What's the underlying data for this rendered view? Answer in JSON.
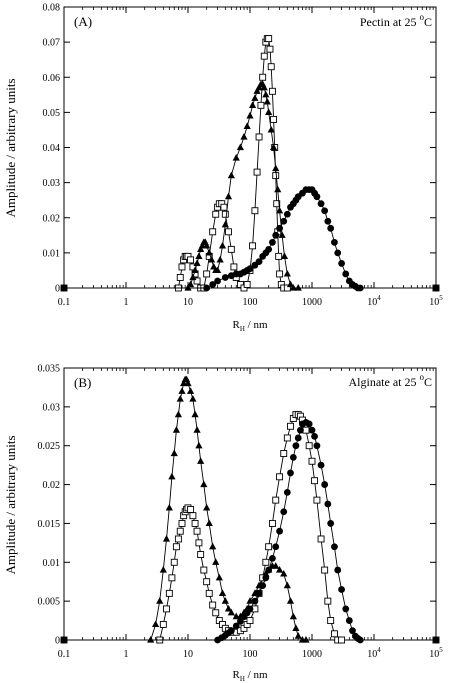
{
  "chart_data": [
    {
      "type": "scatter",
      "panel_label": "(A)",
      "annotation": {
        "text": "Pectin at 25",
        "sup": "o",
        "unit": "C"
      },
      "ylabel": "Amplitude / arbitrary units",
      "xlabel": {
        "main": "R",
        "sub": "H",
        "rest": " / nm"
      },
      "xscale": "log",
      "xlim": [
        0.1,
        100000
      ],
      "ylim": [
        0,
        0.08
      ],
      "x_ticks": [
        {
          "v": 0.1,
          "label": "0.1"
        },
        {
          "v": 1,
          "label": "1"
        },
        {
          "v": 10,
          "label": "10"
        },
        {
          "v": 100,
          "label": "100"
        },
        {
          "v": 1000,
          "label": "1000"
        },
        {
          "v": 10000,
          "base": "10",
          "exp": "4"
        },
        {
          "v": 100000,
          "base": "10",
          "exp": "5"
        }
      ],
      "y_ticks": [
        {
          "v": 0,
          "label": "0"
        },
        {
          "v": 0.01,
          "label": "0.01"
        },
        {
          "v": 0.02,
          "label": "0.02"
        },
        {
          "v": 0.03,
          "label": "0.03"
        },
        {
          "v": 0.04,
          "label": "0.04"
        },
        {
          "v": 0.05,
          "label": "0.05"
        },
        {
          "v": 0.06,
          "label": "0.06"
        },
        {
          "v": 0.07,
          "label": "0.07"
        },
        {
          "v": 0.08,
          "label": "0.08"
        }
      ],
      "grid": false,
      "series": [
        {
          "marker": "square-open",
          "x": [
            0.1,
            7.0,
            7.5,
            8.0,
            8.5,
            9.0,
            9.5,
            10.0,
            11.0,
            12.0,
            13.0,
            14.0,
            16.0,
            18.0,
            20.0,
            22.0,
            25.0,
            28.0,
            30.0,
            32.0,
            35.0,
            38.0,
            40.0,
            45.0,
            50.0,
            55.0,
            60.0,
            70.0,
            80.0,
            90.0,
            100.0,
            110.0,
            120.0,
            130.0,
            140.0,
            150.0,
            160.0,
            170.0,
            180.0,
            190.0,
            200.0,
            210.0,
            220.0,
            230.0,
            240.0,
            250.0,
            260.0,
            270.0,
            280.0,
            290.0,
            300.0,
            320.0,
            350.0,
            400.0,
            100000
          ],
          "y": [
            0,
            0,
            0.003,
            0.006,
            0.008,
            0.009,
            0.009,
            0.009,
            0.008,
            0.006,
            0.004,
            0.002,
            0,
            0,
            0.004,
            0.009,
            0.016,
            0.021,
            0.023,
            0.024,
            0.024,
            0.023,
            0.021,
            0.016,
            0.011,
            0.006,
            0.003,
            0.001,
            0,
            0.001,
            0.005,
            0.012,
            0.022,
            0.033,
            0.043,
            0.052,
            0.06,
            0.066,
            0.07,
            0.071,
            0.071,
            0.068,
            0.063,
            0.056,
            0.048,
            0.04,
            0.032,
            0.024,
            0.016,
            0.009,
            0.004,
            0.001,
            0,
            0,
            0
          ]
        },
        {
          "marker": "triangle-filled",
          "x": [
            0.1,
            10.0,
            11.0,
            12.0,
            13.0,
            14.0,
            15.0,
            16.0,
            17.0,
            18.0,
            19.0,
            20.0,
            22.0,
            24.0,
            26.0,
            28.0,
            30.0,
            33.0,
            36.0,
            40.0,
            45.0,
            50.0,
            60.0,
            70.0,
            80.0,
            90.0,
            100.0,
            110.0,
            120.0,
            130.0,
            140.0,
            150.0,
            160.0,
            170.0,
            180.0,
            190.0,
            200.0,
            220.0,
            240.0,
            260.0,
            280.0,
            300.0,
            330.0,
            360.0,
            400.0,
            450.0,
            500.0,
            600.0,
            100000
          ],
          "y": [
            0,
            0,
            0.001,
            0.003,
            0.005,
            0.007,
            0.009,
            0.011,
            0.012,
            0.013,
            0.013,
            0.012,
            0.01,
            0.008,
            0.006,
            0.005,
            0.005,
            0.008,
            0.012,
            0.018,
            0.026,
            0.032,
            0.037,
            0.04,
            0.043,
            0.046,
            0.049,
            0.052,
            0.054,
            0.056,
            0.057,
            0.058,
            0.058,
            0.057,
            0.055,
            0.053,
            0.05,
            0.045,
            0.04,
            0.034,
            0.028,
            0.022,
            0.015,
            0.009,
            0.004,
            0.001,
            0,
            0,
            0
          ]
        },
        {
          "marker": "circle-filled",
          "x": [
            0.1,
            20.0,
            25.0,
            30.0,
            40.0,
            50.0,
            60.0,
            70.0,
            80.0,
            90.0,
            100.0,
            120.0,
            140.0,
            160.0,
            180.0,
            200.0,
            230.0,
            260.0,
            300.0,
            350.0,
            400.0,
            450.0,
            500.0,
            550.0,
            600.0,
            700.0,
            800.0,
            900.0,
            1000.0,
            1100.0,
            1200.0,
            1400.0,
            1600.0,
            1800.0,
            2000.0,
            2300.0,
            2600.0,
            3000.0,
            3500.0,
            4000.0,
            4500.0,
            5000.0,
            5500.0,
            6000.0,
            100000
          ],
          "y": [
            0,
            0,
            0.001,
            0.002,
            0.003,
            0.0035,
            0.004,
            0.004,
            0.0045,
            0.005,
            0.0055,
            0.0065,
            0.0075,
            0.009,
            0.01,
            0.011,
            0.013,
            0.015,
            0.017,
            0.019,
            0.021,
            0.023,
            0.024,
            0.025,
            0.026,
            0.027,
            0.028,
            0.028,
            0.028,
            0.027,
            0.026,
            0.024,
            0.022,
            0.019,
            0.017,
            0.013,
            0.01,
            0.007,
            0.004,
            0.002,
            0.001,
            0.0005,
            0,
            0,
            0
          ]
        }
      ]
    },
    {
      "type": "scatter",
      "panel_label": "(B)",
      "annotation": {
        "text": "Alginate at 25",
        "sup": "o",
        "unit": "C"
      },
      "ylabel": "Amplitude / arbitrary units",
      "xlabel": {
        "main": "R",
        "sub": "H",
        "rest": " / nm"
      },
      "xscale": "log",
      "xlim": [
        0.1,
        100000
      ],
      "ylim": [
        0,
        0.035
      ],
      "x_ticks": [
        {
          "v": 0.1,
          "label": "0.1"
        },
        {
          "v": 1,
          "label": "1"
        },
        {
          "v": 10,
          "label": "10"
        },
        {
          "v": 100,
          "label": "100"
        },
        {
          "v": 1000,
          "label": "1000"
        },
        {
          "v": 10000,
          "base": "10",
          "exp": "4"
        },
        {
          "v": 100000,
          "base": "10",
          "exp": "5"
        }
      ],
      "y_ticks": [
        {
          "v": 0,
          "label": "0"
        },
        {
          "v": 0.005,
          "label": "0.005"
        },
        {
          "v": 0.01,
          "label": "0.01"
        },
        {
          "v": 0.015,
          "label": "0.015"
        },
        {
          "v": 0.02,
          "label": "0.02"
        },
        {
          "v": 0.025,
          "label": "0.025"
        },
        {
          "v": 0.03,
          "label": "0.03"
        },
        {
          "v": 0.035,
          "label": "0.035"
        }
      ],
      "grid": false,
      "series": [
        {
          "marker": "triangle-filled",
          "x": [
            0.1,
            2.5,
            3.0,
            3.5,
            4.0,
            4.5,
            5.0,
            5.5,
            6.0,
            6.5,
            7.0,
            7.5,
            8.0,
            8.5,
            9.0,
            9.5,
            10.0,
            11.0,
            12.0,
            13.0,
            14.0,
            15.0,
            16.0,
            18.0,
            20.0,
            22.0,
            25.0,
            28.0,
            32.0,
            36.0,
            40.0,
            45.0,
            50.0,
            60.0,
            70.0,
            80.0,
            90.0,
            100.0,
            120.0,
            140.0,
            160.0,
            180.0,
            200.0,
            230.0,
            260.0,
            300.0,
            350.0,
            400.0,
            450.0,
            500.0,
            550.0,
            600.0,
            700.0,
            800.0,
            100000
          ],
          "y": [
            0,
            0,
            0.002,
            0.005,
            0.009,
            0.013,
            0.017,
            0.021,
            0.024,
            0.027,
            0.029,
            0.031,
            0.032,
            0.033,
            0.0335,
            0.0335,
            0.033,
            0.032,
            0.031,
            0.029,
            0.027,
            0.025,
            0.023,
            0.02,
            0.017,
            0.015,
            0.012,
            0.01,
            0.008,
            0.006,
            0.005,
            0.004,
            0.0035,
            0.003,
            0.003,
            0.0035,
            0.004,
            0.005,
            0.006,
            0.007,
            0.008,
            0.0085,
            0.009,
            0.0095,
            0.0095,
            0.009,
            0.0085,
            0.007,
            0.005,
            0.003,
            0.0015,
            0.0005,
            0,
            0,
            0
          ]
        },
        {
          "marker": "square-open",
          "x": [
            0.1,
            3.5,
            4.0,
            4.5,
            5.0,
            5.5,
            6.0,
            6.5,
            7.0,
            7.5,
            8.0,
            8.5,
            9.0,
            9.5,
            10.0,
            11.0,
            12.0,
            13.0,
            14.0,
            15.0,
            16.0,
            18.0,
            20.0,
            22.0,
            25.0,
            28.0,
            32.0,
            36.0,
            40.0,
            45.0,
            50.0,
            60.0,
            70.0,
            80.0,
            90.0,
            100.0,
            120.0,
            140.0,
            160.0,
            180.0,
            200.0,
            230.0,
            260.0,
            300.0,
            350.0,
            400.0,
            450.0,
            500.0,
            550.0,
            600.0,
            650.0,
            700.0,
            800.0,
            900.0,
            1000.0,
            1100.0,
            1200.0,
            1400.0,
            1600.0,
            1800.0,
            2000.0,
            2300.0,
            2600.0,
            3000.0,
            100000
          ],
          "y": [
            0,
            0,
            0.002,
            0.004,
            0.006,
            0.008,
            0.01,
            0.012,
            0.013,
            0.014,
            0.015,
            0.016,
            0.0165,
            0.0168,
            0.017,
            0.0168,
            0.016,
            0.015,
            0.014,
            0.0125,
            0.011,
            0.009,
            0.0075,
            0.006,
            0.0045,
            0.0035,
            0.0025,
            0.002,
            0.0015,
            0.0012,
            0.001,
            0.001,
            0.0012,
            0.0015,
            0.002,
            0.0025,
            0.004,
            0.006,
            0.008,
            0.01,
            0.012,
            0.015,
            0.018,
            0.021,
            0.024,
            0.026,
            0.0275,
            0.0285,
            0.029,
            0.029,
            0.0288,
            0.0283,
            0.027,
            0.025,
            0.023,
            0.0205,
            0.018,
            0.013,
            0.009,
            0.005,
            0.0025,
            0.0008,
            0,
            0,
            0
          ]
        },
        {
          "marker": "circle-filled",
          "x": [
            0.1,
            30.0,
            35.0,
            40.0,
            45.0,
            50.0,
            60.0,
            70.0,
            80.0,
            90.0,
            100.0,
            120.0,
            140.0,
            160.0,
            180.0,
            200.0,
            230.0,
            260.0,
            300.0,
            350.0,
            400.0,
            450.0,
            500.0,
            550.0,
            600.0,
            650.0,
            700.0,
            800.0,
            900.0,
            1000.0,
            1100.0,
            1200.0,
            1400.0,
            1600.0,
            1800.0,
            2000.0,
            2300.0,
            2600.0,
            3000.0,
            3500.0,
            4000.0,
            4500.0,
            5000.0,
            5500.0,
            6000.0,
            100000
          ],
          "y": [
            0,
            0,
            0.0003,
            0.0006,
            0.0009,
            0.0012,
            0.0018,
            0.0024,
            0.003,
            0.0035,
            0.004,
            0.005,
            0.006,
            0.007,
            0.008,
            0.009,
            0.0105,
            0.012,
            0.014,
            0.0165,
            0.019,
            0.0215,
            0.0235,
            0.025,
            0.026,
            0.027,
            0.0278,
            0.028,
            0.0278,
            0.027,
            0.0262,
            0.025,
            0.0225,
            0.02,
            0.0175,
            0.015,
            0.012,
            0.009,
            0.0065,
            0.004,
            0.0025,
            0.0012,
            0.0005,
            0.0002,
            0,
            0
          ]
        }
      ]
    }
  ]
}
